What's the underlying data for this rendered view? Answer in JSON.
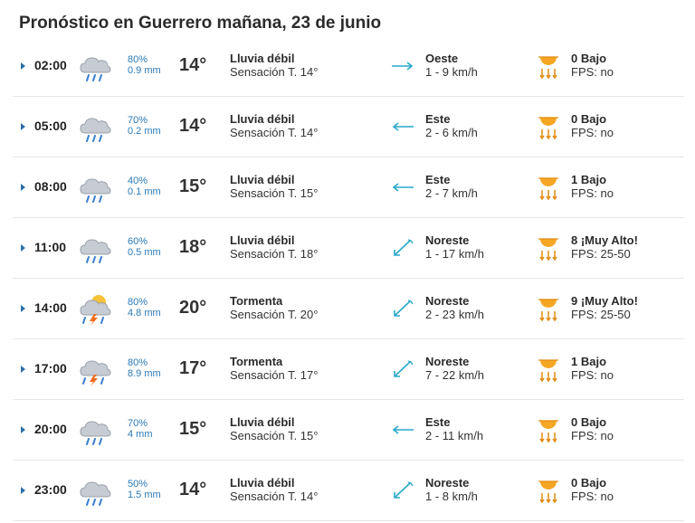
{
  "title": "Pronóstico en Guerrero mañana, 23 de junio",
  "colors": {
    "accent": "#2e6fa7",
    "precip": "#2a7ab8",
    "wind_arrow": "#29a9c9",
    "sun": "#f5a623"
  },
  "rows": [
    {
      "time": "02:00",
      "icon": "rain-cloud-icon",
      "prob": "80%",
      "mm": "0.9 mm",
      "temp": "14°",
      "cond": "Lluvia débil",
      "feels": "Sensación T. 14°",
      "wind_icon": "arrow-east-icon",
      "wind_dir": "Oeste",
      "wind_speed": "1 - 9 km/h",
      "uv": "0 Bajo",
      "fps": "FPS: no"
    },
    {
      "time": "05:00",
      "icon": "rain-cloud-icon",
      "prob": "70%",
      "mm": "0.2 mm",
      "temp": "14°",
      "cond": "Lluvia débil",
      "feels": "Sensación T. 14°",
      "wind_icon": "arrow-west-icon",
      "wind_dir": "Este",
      "wind_speed": "2 - 6 km/h",
      "uv": "0 Bajo",
      "fps": "FPS: no"
    },
    {
      "time": "08:00",
      "icon": "rain-cloud-icon",
      "prob": "40%",
      "mm": "0.1 mm",
      "temp": "15°",
      "cond": "Lluvia débil",
      "feels": "Sensación T. 15°",
      "wind_icon": "arrow-west-icon",
      "wind_dir": "Este",
      "wind_speed": "2 - 7 km/h",
      "uv": "1 Bajo",
      "fps": "FPS: no"
    },
    {
      "time": "11:00",
      "icon": "rain-cloud-icon",
      "prob": "60%",
      "mm": "0.5 mm",
      "temp": "18°",
      "cond": "Lluvia débil",
      "feels": "Sensación T. 18°",
      "wind_icon": "arrow-southwest-icon",
      "wind_dir": "Noreste",
      "wind_speed": "1 - 17 km/h",
      "uv": "8 ¡Muy Alto!",
      "fps": "FPS: 25-50"
    },
    {
      "time": "14:00",
      "icon": "storm-sun-icon",
      "prob": "80%",
      "mm": "4.8 mm",
      "temp": "20°",
      "cond": "Tormenta",
      "feels": "Sensación T. 20°",
      "wind_icon": "arrow-southwest-icon",
      "wind_dir": "Noreste",
      "wind_speed": "2 - 23 km/h",
      "uv": "9 ¡Muy Alto!",
      "fps": "FPS: 25-50"
    },
    {
      "time": "17:00",
      "icon": "storm-icon",
      "prob": "80%",
      "mm": "8.9 mm",
      "temp": "17°",
      "cond": "Tormenta",
      "feels": "Sensación T. 17°",
      "wind_icon": "arrow-southwest-icon",
      "wind_dir": "Noreste",
      "wind_speed": "7 - 22 km/h",
      "uv": "1 Bajo",
      "fps": "FPS: no"
    },
    {
      "time": "20:00",
      "icon": "rain-cloud-icon",
      "prob": "70%",
      "mm": "4 mm",
      "temp": "15°",
      "cond": "Lluvia débil",
      "feels": "Sensación T. 15°",
      "wind_icon": "arrow-west-icon",
      "wind_dir": "Este",
      "wind_speed": "2 - 11 km/h",
      "uv": "0 Bajo",
      "fps": "FPS: no"
    },
    {
      "time": "23:00",
      "icon": "rain-cloud-icon",
      "prob": "50%",
      "mm": "1.5 mm",
      "temp": "14°",
      "cond": "Lluvia débil",
      "feels": "Sensación T. 14°",
      "wind_icon": "arrow-southwest-icon",
      "wind_dir": "Noreste",
      "wind_speed": "1 - 8 km/h",
      "uv": "0 Bajo",
      "fps": "FPS: no"
    }
  ]
}
